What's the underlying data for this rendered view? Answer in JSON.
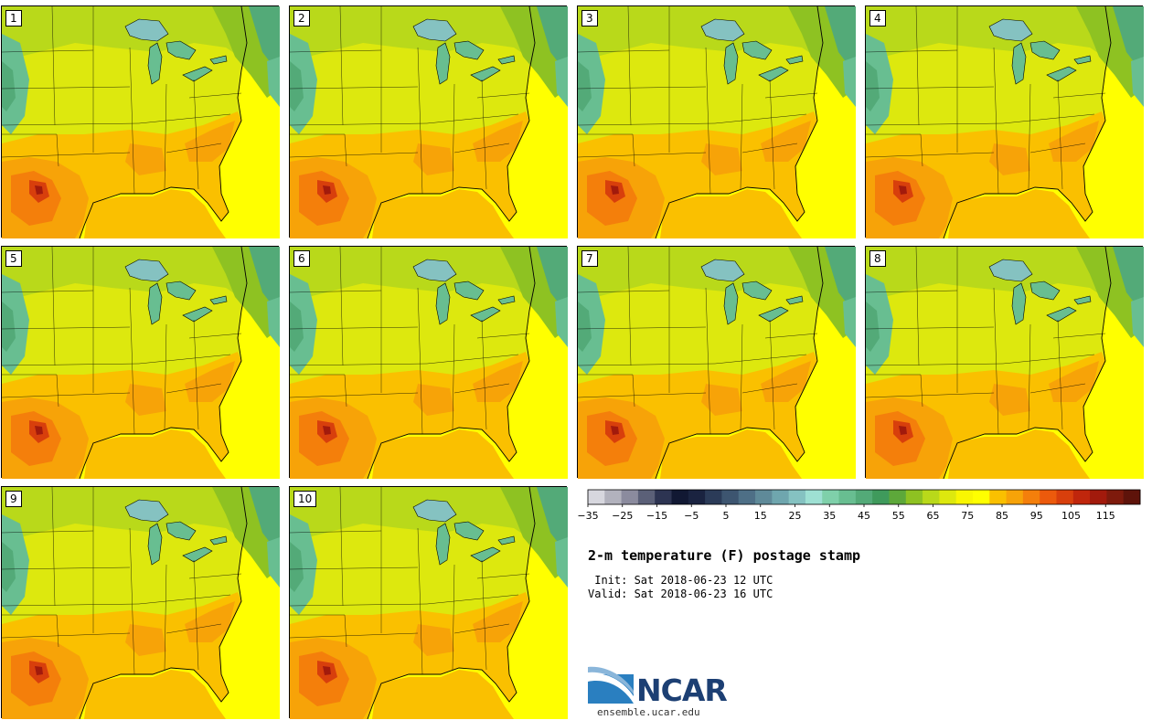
{
  "figure": {
    "title": "2-m temperature (F) postage stamp",
    "init_line": " Init: Sat 2018-06-23 12 UTC",
    "valid_line": "Valid: Sat 2018-06-23 16 UTC"
  },
  "members": [
    "1",
    "2",
    "3",
    "4",
    "5",
    "6",
    "7",
    "8",
    "9",
    "10"
  ],
  "colorbar": {
    "unit": "F",
    "min": -35,
    "max": 120,
    "step": 5,
    "tick_labels": [
      "−35",
      "−25",
      "−15",
      "−5",
      "5",
      "15",
      "25",
      "35",
      "45",
      "55",
      "65",
      "75",
      "85",
      "95",
      "105",
      "115"
    ],
    "colors": [
      "#d7d7de",
      "#b2b2bd",
      "#8b8b9e",
      "#5b6078",
      "#2d3452",
      "#111833",
      "#1a2340",
      "#2b3b58",
      "#3d5570",
      "#4e6f86",
      "#5f8a99",
      "#6fa6ae",
      "#85c2c1",
      "#9ee0d3",
      "#7fd0aa",
      "#68be91",
      "#53aa78",
      "#3f9a5c",
      "#5da83a",
      "#8ec222",
      "#b9d91a",
      "#dde80e",
      "#f9f602",
      "#ffff00",
      "#fac000",
      "#f7a308",
      "#f47f0b",
      "#ec5a0c",
      "#d83f0c",
      "#c0260c",
      "#a21a0c",
      "#7e1a0c",
      "#5e130a"
    ]
  },
  "logo": {
    "name": "NCAR",
    "url": "ensemble.ucar.edu"
  },
  "map_colors": {
    "ocean_warm": "#ffff00",
    "gulf": "#fac000",
    "north_green": "#b9d91a",
    "plains": "#dde80e",
    "south_orange": "#f7a308",
    "hot": "#ec5a0c",
    "hottest": "#c0260c",
    "lakes": "#85c2c1",
    "atlantic_green": "#53aa78"
  }
}
